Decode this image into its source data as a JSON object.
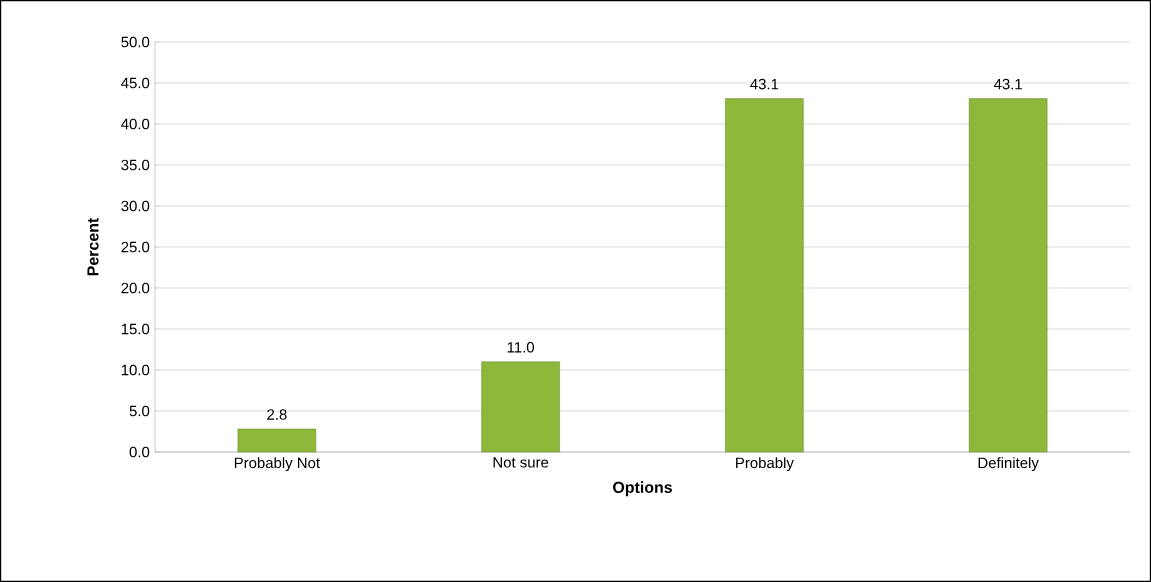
{
  "chart_data": {
    "type": "bar",
    "xlabel": "Options",
    "ylabel": "Percent",
    "categories": [
      "Probably Not",
      "Not sure",
      "Probably",
      "Definitely"
    ],
    "values": [
      2.8,
      11.0,
      43.1,
      43.1
    ],
    "value_labels": [
      "2.8",
      "11.0",
      "43.1",
      "43.1"
    ],
    "color": "#8db83a",
    "ylim": [
      0,
      50
    ],
    "yticks": [
      {
        "value": 0,
        "label": "0.0"
      },
      {
        "value": 5,
        "label": "5.0"
      },
      {
        "value": 10,
        "label": "10.0"
      },
      {
        "value": 15,
        "label": "15.0"
      },
      {
        "value": 20,
        "label": "20.0"
      },
      {
        "value": 25,
        "label": "25.0"
      },
      {
        "value": 30,
        "label": "30.0"
      },
      {
        "value": 35,
        "label": "35.0"
      },
      {
        "value": 40,
        "label": "40.0"
      },
      {
        "value": 45,
        "label": "45.0"
      },
      {
        "value": 50,
        "label": "50.0"
      }
    ],
    "grid": "y"
  }
}
